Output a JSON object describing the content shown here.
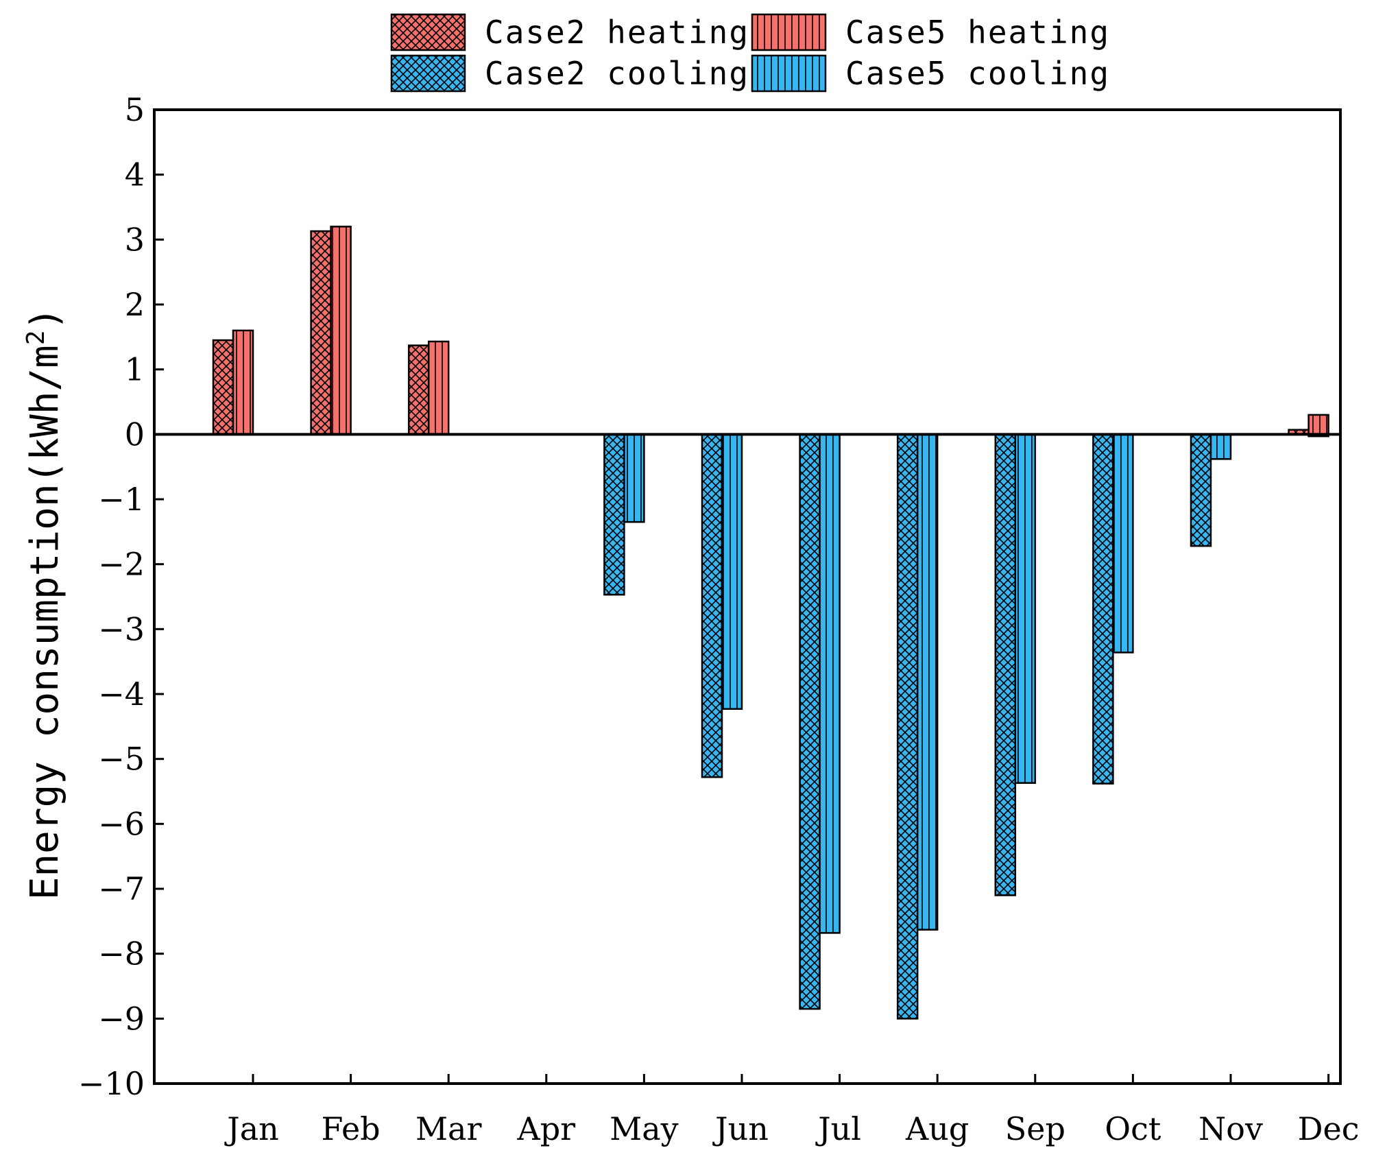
{
  "chart_data": {
    "type": "bar",
    "title": "",
    "xlabel": "",
    "ylabel_main": "Energy consumption(kWh/m",
    "ylabel_sup": "2",
    "ylabel_close": ")",
    "ylim": [
      -10,
      5
    ],
    "yticks": [
      5,
      4,
      3,
      2,
      1,
      0,
      -1,
      -2,
      -3,
      -4,
      -5,
      -6,
      -7,
      -8,
      -9,
      -10
    ],
    "ytick_labels": [
      "5",
      "4",
      "3",
      "2",
      "1",
      "0",
      "−1",
      "−2",
      "−3",
      "−4",
      "−5",
      "−6",
      "−7",
      "−8",
      "−9",
      "−10"
    ],
    "categories": [
      "Jan",
      "Feb",
      "Mar",
      "Apr",
      "May",
      "Jun",
      "Jul",
      "Aug",
      "Sep",
      "Oct",
      "Nov",
      "Dec"
    ],
    "legend_position": "top-center",
    "series": [
      {
        "name": "Case2 heating",
        "color": "#f4716d",
        "pattern": "crosshatch",
        "group": "case2",
        "values": [
          1.45,
          3.13,
          1.37,
          0,
          0,
          0,
          0,
          0,
          0,
          0,
          0,
          0.07
        ]
      },
      {
        "name": "Case5 heating",
        "color": "#f4716d",
        "pattern": "vertical",
        "group": "case5",
        "values": [
          1.6,
          3.2,
          1.43,
          0,
          0,
          0,
          0,
          0,
          0,
          0,
          0,
          0.3
        ]
      },
      {
        "name": "Case2 cooling",
        "color": "#38b6f1",
        "pattern": "crosshatch",
        "group": "case2",
        "values": [
          0,
          0,
          0,
          0,
          -2.47,
          -5.28,
          -8.85,
          -9.0,
          -7.1,
          -5.38,
          -1.72,
          0
        ]
      },
      {
        "name": "Case5 cooling",
        "color": "#38b6f1",
        "pattern": "vertical",
        "group": "case5",
        "values": [
          0,
          0,
          0,
          0,
          -1.35,
          -4.23,
          -7.68,
          -7.63,
          -5.37,
          -3.36,
          -0.38,
          -0.03
        ]
      }
    ]
  }
}
